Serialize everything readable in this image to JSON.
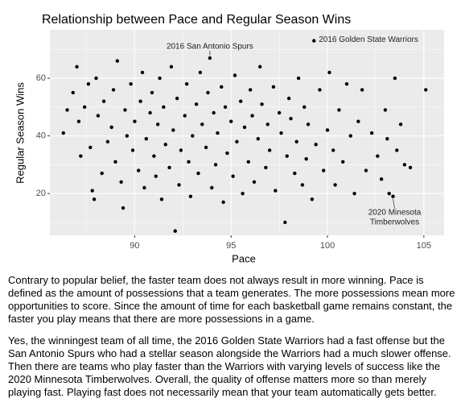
{
  "chart_data": {
    "type": "scatter",
    "title": "Relationship between Pace and Regular Season Wins",
    "x_label": "Pace",
    "y_label": "Regular Season Wins",
    "color": "#000000",
    "grid": true,
    "xlim": [
      85.6,
      106.05
    ],
    "ylim": [
      5.5,
      76.8
    ],
    "xticks": [
      90,
      95,
      100,
      105
    ],
    "yticks": [
      20,
      40,
      60
    ],
    "x": [
      86.3,
      86.5,
      86.8,
      87.0,
      87.1,
      87.2,
      87.4,
      87.6,
      87.7,
      87.8,
      87.9,
      88.0,
      88.1,
      88.3,
      88.4,
      88.6,
      88.8,
      88.9,
      89.0,
      89.1,
      89.3,
      89.4,
      89.5,
      89.6,
      89.8,
      89.9,
      90.0,
      90.2,
      90.3,
      90.4,
      90.5,
      90.6,
      90.8,
      90.9,
      91.0,
      91.1,
      91.2,
      91.3,
      91.4,
      91.5,
      91.6,
      91.8,
      91.9,
      92.0,
      92.1,
      92.2,
      92.3,
      92.4,
      92.6,
      92.7,
      92.8,
      92.9,
      93.0,
      93.2,
      93.3,
      93.4,
      93.5,
      93.7,
      93.8,
      93.9,
      94.0,
      94.1,
      94.2,
      94.3,
      94.5,
      94.6,
      94.7,
      94.8,
      95.0,
      95.1,
      95.2,
      95.3,
      95.5,
      95.6,
      95.7,
      95.9,
      96.0,
      96.1,
      96.2,
      96.4,
      96.5,
      96.6,
      96.8,
      96.9,
      97.0,
      97.2,
      97.3,
      97.5,
      97.6,
      97.8,
      97.9,
      98.0,
      98.1,
      98.3,
      98.4,
      98.5,
      98.7,
      98.8,
      98.9,
      99.0,
      99.2,
      99.3,
      99.4,
      99.6,
      99.8,
      100.0,
      100.1,
      100.3,
      100.4,
      100.6,
      100.8,
      101.0,
      101.2,
      101.4,
      101.6,
      101.8,
      102.0,
      102.3,
      102.6,
      102.8,
      103.0,
      103.1,
      103.2,
      103.4,
      103.5,
      103.6,
      103.8,
      104.0,
      104.3,
      105.1
    ],
    "values": [
      41,
      49,
      55,
      64,
      45,
      33,
      50,
      58,
      36,
      21,
      18,
      60,
      47,
      27,
      52,
      38,
      43,
      56,
      31,
      66,
      24,
      15,
      49,
      40,
      58,
      35,
      45,
      28,
      52,
      62,
      22,
      39,
      48,
      55,
      33,
      26,
      44,
      60,
      18,
      50,
      37,
      29,
      64,
      42,
      7,
      53,
      23,
      35,
      47,
      58,
      31,
      19,
      40,
      51,
      27,
      62,
      44,
      36,
      55,
      67,
      22,
      48,
      30,
      41,
      57,
      17,
      50,
      34,
      45,
      26,
      61,
      38,
      52,
      20,
      43,
      31,
      56,
      47,
      24,
      39,
      64,
      51,
      29,
      44,
      35,
      57,
      21,
      48,
      41,
      10,
      33,
      53,
      46,
      27,
      38,
      60,
      23,
      50,
      32,
      44,
      18,
      73,
      37,
      56,
      28,
      42,
      62,
      35,
      23,
      49,
      31,
      58,
      40,
      20,
      45,
      56,
      28,
      41,
      33,
      25,
      49,
      39,
      20,
      19,
      60,
      35,
      44,
      30,
      29,
      56
    ],
    "annotations": [
      {
        "lines": [
          "2016 San Antonio Spurs"
        ],
        "point": 59
      },
      {
        "lines": [
          "2016 Golden State Warriors"
        ],
        "point": 101
      },
      {
        "lines": [
          "2020 Minesota",
          "Timberwolves"
        ],
        "point": 123
      }
    ]
  },
  "paragraphs": [
    "Contrary to popular belief, the faster team does not always result in more winning. Pace is defined as the amount of possessions that a team generates. The more possessions mean more opportunities to score. Since the amount of time for each basketball game remains constant, the faster you play means that there are more possessions in a game.",
    "Yes, the winningest team of all time, the 2016 Golden State Warriors had a fast offense but the San Antonio Spurs who had a stellar season alongside the Warriors had a much slower offense. Then there are teams who play faster than the Warriors with varying levels of success like the 2020 Minnesota Timberwolves. Overall, the quality of offense matters more so than merely playing fast. Playing fast does not necessarily mean that your team automatically gets better."
  ]
}
